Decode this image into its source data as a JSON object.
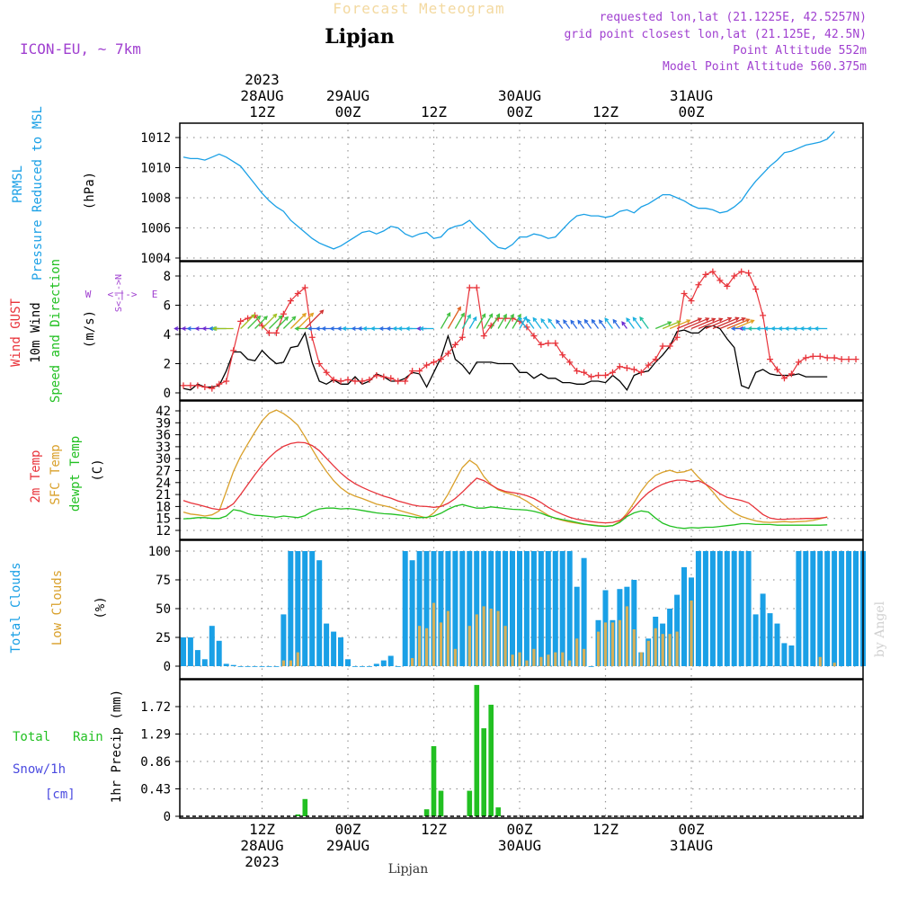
{
  "header": {
    "super_title": "Forecast Meteogram",
    "location": "Lipjan",
    "model": "ICON-EU, ~ 7km",
    "requested": "requested lon,lat (21.1225E, 42.5257N)",
    "grid_point": "grid point closest lon,lat (21.125E, 42.5N)",
    "point_altitude": "Point Altitude 552m",
    "model_altitude": "Model Point Altitude 560.375m",
    "footer_location": "Lipjan",
    "watermark": "by Angel"
  },
  "colors": {
    "cyan": "#1aa0e6",
    "red": "#e8333a",
    "orange": "#d9a02a",
    "green": "#22c022",
    "purple": "#a040d0",
    "blue": "#4a4ae0",
    "black": "#000000",
    "grid": "#999999"
  },
  "time_axis": {
    "top_labels": [
      {
        "hour": 12,
        "lines": [
          "2023",
          "28AUG",
          "12Z"
        ]
      },
      {
        "hour": 24,
        "lines": [
          "29AUG",
          "00Z"
        ]
      },
      {
        "hour": 36,
        "lines": [
          "12Z"
        ]
      },
      {
        "hour": 48,
        "lines": [
          "30AUG",
          "00Z"
        ]
      },
      {
        "hour": 60,
        "lines": [
          "12Z"
        ]
      },
      {
        "hour": 72,
        "lines": [
          "31AUG",
          "00Z"
        ]
      }
    ],
    "bottom_labels": [
      {
        "hour": 12,
        "lines": [
          "12Z",
          "28AUG",
          "2023"
        ]
      },
      {
        "hour": 24,
        "lines": [
          "00Z",
          "29AUG"
        ]
      },
      {
        "hour": 36,
        "lines": [
          "12Z"
        ]
      },
      {
        "hour": 48,
        "lines": [
          "00Z",
          "30AUG"
        ]
      },
      {
        "hour": 60,
        "lines": [
          "12Z"
        ]
      },
      {
        "hour": 72,
        "lines": [
          "00Z",
          "31AUG"
        ]
      }
    ]
  },
  "panel_labels": {
    "pressure": {
      "a": "PRMSL",
      "b": "Pressure Reduced to MSL",
      "unit": "(hPa)"
    },
    "wind": {
      "a": "Wind GUST",
      "b": "10m Wind",
      "c": "Speed and Direction",
      "unit": "(m/s)",
      "compass_w": "W",
      "compass_e": "E",
      "compass_n": "N",
      "compass_s": "S",
      "compass_arrows": "<-|->",
      "compass_vertical": "S<-|->N"
    },
    "temp": {
      "a": "2m Temp",
      "b": "SFC Temp",
      "c": "dewpt Temp",
      "unit": "(C)"
    },
    "clouds": {
      "a": "Total Clouds",
      "b": "Low Clouds",
      "unit": "(%)"
    },
    "precip": {
      "a": "Total",
      "a2": "Rain",
      "b": "Snow/1h",
      "c": "[cm]",
      "unit": "1hr Precip (mm)"
    }
  },
  "chart_data": [
    {
      "type": "line",
      "name": "pressure",
      "x_start_hour": 1,
      "ylim": [
        1004,
        1012.6
      ],
      "yticks": [
        1004,
        1006,
        1008,
        1010,
        1012
      ],
      "series": [
        {
          "name": "PRMSL",
          "color": "cyan",
          "values": [
            1010.7,
            1010.6,
            1010.6,
            1010.5,
            1010.7,
            1010.9,
            1010.7,
            1010.4,
            1010.1,
            1009.5,
            1008.9,
            1008.3,
            1007.8,
            1007.4,
            1007.1,
            1006.5,
            1006.1,
            1005.7,
            1005.3,
            1005.0,
            1004.8,
            1004.6,
            1004.8,
            1005.1,
            1005.4,
            1005.7,
            1005.8,
            1005.6,
            1005.8,
            1006.1,
            1006.0,
            1005.6,
            1005.4,
            1005.6,
            1005.7,
            1005.3,
            1005.4,
            1005.9,
            1006.1,
            1006.2,
            1006.5,
            1006.0,
            1005.6,
            1005.1,
            1004.7,
            1004.6,
            1004.9,
            1005.4,
            1005.4,
            1005.6,
            1005.5,
            1005.3,
            1005.4,
            1005.9,
            1006.4,
            1006.8,
            1006.9,
            1006.8,
            1006.8,
            1006.7,
            1006.8,
            1007.1,
            1007.2,
            1007.0,
            1007.4,
            1007.6,
            1007.9,
            1008.2,
            1008.2,
            1008.0,
            1007.8,
            1007.5,
            1007.3,
            1007.3,
            1007.2,
            1007.0,
            1007.1,
            1007.4,
            1007.8,
            1008.5,
            1009.1,
            1009.6,
            1010.1,
            1010.5,
            1011.0,
            1011.1,
            1011.3,
            1011.5,
            1011.6,
            1011.7,
            1011.9,
            1012.4
          ]
        }
      ]
    },
    {
      "type": "line",
      "name": "wind",
      "x_start_hour": 1,
      "ylim": [
        -0.2,
        9
      ],
      "yticks": [
        0,
        2,
        4,
        6,
        8
      ],
      "series": [
        {
          "name": "Wind GUST",
          "color": "red",
          "markers": "+",
          "values": [
            0.5,
            0.5,
            0.5,
            0.4,
            0.3,
            0.6,
            0.8,
            2.9,
            4.9,
            5.1,
            5.3,
            4.6,
            4.1,
            4.1,
            5.4,
            6.3,
            6.8,
            7.2,
            3.8,
            2.0,
            1.4,
            0.9,
            0.8,
            0.9,
            0.8,
            0.8,
            0.9,
            1.2,
            1.1,
            1.0,
            0.8,
            0.8,
            1.5,
            1.5,
            1.9,
            2.1,
            2.3,
            2.7,
            3.3,
            3.8,
            7.2,
            7.2,
            3.9,
            4.6,
            5.1,
            5.1,
            5.1,
            4.9,
            4.5,
            3.9,
            3.3,
            3.4,
            3.4,
            2.6,
            2.1,
            1.5,
            1.4,
            1.1,
            1.2,
            1.2,
            1.4,
            1.8,
            1.7,
            1.6,
            1.4,
            1.9,
            2.3,
            3.2,
            3.2,
            3.8,
            6.8,
            6.3,
            7.4,
            8.1,
            8.3,
            7.7,
            7.3,
            8.0,
            8.3,
            8.2,
            7.1,
            5.3,
            2.3,
            1.6,
            1.0,
            1.3,
            2.1,
            2.4,
            2.5,
            2.5,
            2.4,
            2.4,
            2.3,
            2.3,
            2.3
          ]
        },
        {
          "name": "10m Wind",
          "color": "black",
          "values": [
            0.3,
            0.2,
            0.6,
            0.4,
            0.4,
            0.5,
            1.5,
            2.8,
            2.8,
            2.3,
            2.2,
            2.9,
            2.4,
            2.0,
            2.1,
            3.1,
            3.2,
            4.1,
            2.1,
            0.8,
            0.6,
            0.9,
            0.6,
            0.6,
            1.1,
            0.6,
            0.8,
            1.3,
            1.1,
            0.8,
            0.8,
            1.0,
            1.4,
            1.3,
            0.4,
            1.4,
            2.4,
            3.9,
            2.3,
            1.9,
            1.3,
            2.1,
            2.1,
            2.1,
            2.0,
            2.0,
            2.0,
            1.4,
            1.4,
            1.0,
            1.3,
            1.0,
            1.0,
            0.7,
            0.7,
            0.6,
            0.6,
            0.8,
            0.8,
            0.7,
            1.2,
            0.8,
            0.2,
            1.2,
            1.4,
            1.5,
            2.1,
            2.6,
            3.2,
            4.2,
            4.3,
            4.1,
            4.1,
            4.5,
            4.6,
            4.4,
            3.7,
            3.1,
            0.5,
            0.3,
            1.4,
            1.6,
            1.3,
            1.2,
            1.2,
            1.2,
            1.3,
            1.1,
            1.1,
            1.1,
            1.1
          ]
        }
      ]
    },
    {
      "type": "line",
      "name": "temperature",
      "x_start_hour": 1,
      "ylim": [
        11,
        43
      ],
      "yticks": [
        12,
        15,
        18,
        21,
        24,
        27,
        30,
        33,
        36,
        39,
        42
      ],
      "series": [
        {
          "name": "2m Temp",
          "color": "red",
          "values": [
            19.5,
            18.9,
            18.5,
            18.0,
            17.5,
            17.2,
            17.5,
            18.7,
            21.0,
            23.5,
            26.0,
            28.3,
            30.3,
            31.9,
            33.1,
            33.8,
            34.1,
            34.0,
            33.3,
            32.0,
            30.1,
            28.2,
            26.4,
            24.9,
            23.7,
            22.8,
            22.0,
            21.3,
            20.6,
            20.1,
            19.4,
            18.9,
            18.4,
            18.1,
            18.0,
            17.8,
            18.0,
            18.8,
            20.0,
            21.6,
            23.4,
            25.1,
            24.5,
            23.4,
            22.4,
            21.8,
            21.5,
            21.2,
            20.7,
            20.0,
            19.0,
            17.8,
            16.8,
            16.0,
            15.3,
            14.8,
            14.5,
            14.2,
            14.0,
            13.9,
            14.0,
            14.5,
            15.8,
            17.8,
            19.8,
            21.5,
            22.7,
            23.6,
            24.2,
            24.6,
            24.6,
            24.2,
            24.5,
            23.6,
            22.5,
            21.2,
            20.3,
            19.9,
            19.5,
            18.9,
            17.5,
            16.0,
            15.1,
            14.8,
            14.8,
            14.9,
            14.9,
            15.0,
            15.0,
            15.1,
            15.3
          ]
        },
        {
          "name": "SFC Temp",
          "color": "orange",
          "values": [
            16.6,
            16.1,
            15.9,
            15.6,
            15.9,
            16.9,
            21.8,
            26.8,
            30.6,
            33.7,
            36.7,
            39.5,
            41.4,
            42.2,
            41.3,
            40.0,
            38.4,
            35.5,
            32.4,
            29.4,
            26.8,
            24.5,
            22.7,
            21.4,
            20.6,
            20.0,
            19.3,
            18.6,
            18.2,
            17.8,
            17.1,
            16.6,
            16.1,
            15.6,
            15.1,
            16.4,
            18.3,
            21.1,
            24.5,
            27.8,
            29.6,
            28.4,
            25.5,
            23.5,
            22.2,
            21.5,
            21.0,
            20.3,
            19.3,
            18.1,
            16.9,
            15.8,
            15.0,
            14.5,
            14.1,
            13.8,
            13.5,
            13.4,
            13.2,
            13.1,
            13.2,
            14.2,
            16.3,
            19.0,
            21.9,
            24.2,
            25.8,
            26.6,
            27.1,
            26.5,
            26.7,
            27.3,
            25.3,
            23.6,
            21.7,
            19.5,
            17.8,
            16.4,
            15.5,
            14.9,
            14.4,
            14.1,
            14.0,
            14.1,
            14.2,
            14.1,
            14.2,
            14.3,
            14.5,
            14.9,
            15.4
          ]
        },
        {
          "name": "dewpt Temp",
          "color": "green",
          "values": [
            14.9,
            15.0,
            15.2,
            15.2,
            15.0,
            15.0,
            15.6,
            17.2,
            16.9,
            16.2,
            15.8,
            15.7,
            15.5,
            15.3,
            15.6,
            15.4,
            15.2,
            15.7,
            16.8,
            17.4,
            17.6,
            17.6,
            17.4,
            17.5,
            17.3,
            17.0,
            16.7,
            16.4,
            16.2,
            16.1,
            15.9,
            15.7,
            15.4,
            15.2,
            15.3,
            15.6,
            16.3,
            17.3,
            18.1,
            18.5,
            18.0,
            17.6,
            17.6,
            17.9,
            17.7,
            17.5,
            17.3,
            17.2,
            17.1,
            16.8,
            16.3,
            15.6,
            15.1,
            14.7,
            14.4,
            14.0,
            13.6,
            13.3,
            13.1,
            13.0,
            13.2,
            14.0,
            15.5,
            16.4,
            16.9,
            16.6,
            15.1,
            13.8,
            13.1,
            12.7,
            12.5,
            12.7,
            12.6,
            12.8,
            12.8,
            13.0,
            13.2,
            13.4,
            13.7,
            13.7,
            13.5,
            13.5,
            13.5,
            13.3,
            13.3,
            13.3,
            13.3,
            13.3,
            13.3,
            13.3,
            13.4
          ]
        }
      ]
    },
    {
      "type": "bar",
      "name": "clouds",
      "x_start_hour": 1,
      "ylim": [
        0,
        100
      ],
      "yticks": [
        0,
        25,
        50,
        75,
        100
      ],
      "series": [
        {
          "name": "Total Clouds",
          "color": "cyan",
          "values": [
            25,
            25,
            14,
            6,
            35,
            22,
            2,
            1,
            0,
            0,
            0,
            0,
            0,
            0,
            45,
            100,
            100,
            100,
            100,
            92,
            37,
            30,
            25,
            6,
            0,
            0,
            0,
            2,
            5,
            9,
            0,
            100,
            92,
            100,
            100,
            100,
            100,
            100,
            100,
            100,
            100,
            100,
            100,
            100,
            100,
            100,
            100,
            100,
            100,
            100,
            100,
            100,
            100,
            100,
            100,
            69,
            94,
            0,
            40,
            66,
            40,
            67,
            69,
            75,
            12,
            24,
            43,
            37,
            50,
            62,
            86,
            77,
            100,
            100,
            100,
            100,
            100,
            100,
            100,
            100,
            45,
            63,
            46,
            37,
            20,
            18,
            100,
            100,
            100,
            100,
            100,
            100,
            100,
            100,
            100,
            100
          ]
        },
        {
          "name": "Low Clouds",
          "color": "orange",
          "values": [
            0,
            0,
            0,
            0,
            0,
            0,
            0,
            0,
            0,
            0,
            0,
            0,
            0,
            0,
            5,
            5,
            12,
            0,
            0,
            0,
            0,
            0,
            0,
            0,
            0,
            0,
            0,
            0,
            0,
            0,
            0,
            0,
            7,
            35,
            33,
            55,
            38,
            48,
            15,
            0,
            35,
            45,
            52,
            50,
            48,
            35,
            10,
            12,
            5,
            15,
            8,
            10,
            12,
            12,
            5,
            24,
            15,
            0,
            30,
            38,
            38,
            40,
            52,
            32,
            12,
            22,
            33,
            28,
            28,
            30,
            0,
            57,
            0,
            0,
            0,
            0,
            0,
            0,
            0,
            0,
            0,
            0,
            0,
            0,
            0,
            0,
            0,
            0,
            0,
            8,
            0,
            3,
            0,
            0,
            0,
            0
          ]
        }
      ]
    },
    {
      "type": "bar",
      "name": "precipitation",
      "x_start_hour": 1,
      "ylim": [
        0,
        2.15
      ],
      "yticks": [
        0,
        0.43,
        0.86,
        1.29,
        1.72
      ],
      "series": [
        {
          "name": "Total Rain",
          "color": "green",
          "values": [
            0,
            0,
            0,
            0,
            0,
            0,
            0,
            0,
            0,
            0,
            0,
            0,
            0,
            0,
            0,
            0,
            0.03,
            0.27,
            0,
            0,
            0,
            0,
            0,
            0,
            0,
            0,
            0,
            0,
            0,
            0,
            0,
            0,
            0,
            0,
            0.11,
            1.1,
            0.4,
            0,
            0,
            0,
            0.4,
            2.06,
            1.38,
            1.75,
            0.14,
            0,
            0,
            0,
            0,
            0,
            0,
            0,
            0,
            0,
            0,
            0,
            0,
            0,
            0,
            0,
            0,
            0,
            0,
            0,
            0,
            0,
            0,
            0,
            0,
            0,
            0,
            0,
            0,
            0,
            0,
            0,
            0,
            0,
            0,
            0,
            0,
            0,
            0,
            0,
            0,
            0,
            0,
            0,
            0,
            0,
            0,
            0,
            0,
            0,
            0,
            0
          ]
        }
      ]
    }
  ]
}
